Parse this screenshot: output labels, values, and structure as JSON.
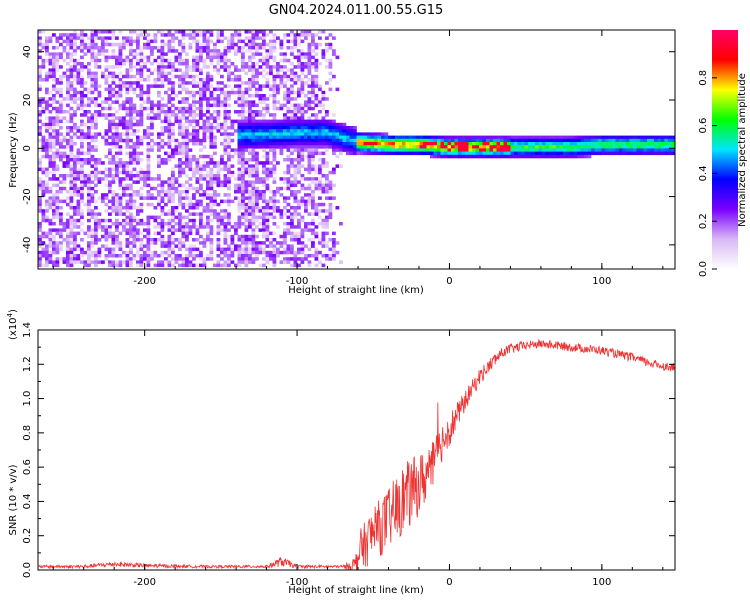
{
  "figure_title": "GN04.2024.011.00.55.G15",
  "chart_data": [
    {
      "type": "heatmap",
      "title": "",
      "xlabel": "Height of straight line (km)",
      "ylabel": "Frequency (Hz)",
      "xlim": [
        -270,
        148
      ],
      "ylim": [
        -50,
        49
      ],
      "xticks": [
        -200,
        -100,
        0,
        100
      ],
      "yticks": [
        -40,
        -20,
        0,
        20,
        40
      ],
      "colorbar": {
        "label": "Normalized spectral amplitude",
        "range": [
          0,
          1
        ],
        "ticks": [
          0.0,
          0.2,
          0.4,
          0.6,
          0.8
        ],
        "colormap": [
          "#ffffff",
          "#d9b8f5",
          "#7a00ff",
          "#0000ff",
          "#00e5ff",
          "#00ff00",
          "#ffff00",
          "#ff0000",
          "#ff0066"
        ]
      },
      "ridge": {
        "description_free": true,
        "x": [
          -130,
          -100,
          -80,
          -60,
          -40,
          -20,
          0,
          20,
          40,
          60,
          80,
          100,
          120,
          148
        ],
        "frequency": [
          5,
          6,
          6,
          2,
          1,
          1,
          0,
          0,
          0,
          0,
          0,
          1,
          1,
          1
        ]
      },
      "noise_region_x": [
        -270,
        -70
      ]
    },
    {
      "type": "line",
      "title": "",
      "xlabel": "Height of straight line (km)",
      "ylabel": "SNR (10 * v/v)",
      "y_multiplier_label": "(x10",
      "y_multiplier_exp": "4",
      "y_multiplier_close": ")",
      "xlim": [
        -270,
        148
      ],
      "ylim": [
        0,
        1.4
      ],
      "xticks": [
        -200,
        -100,
        0,
        100
      ],
      "yticks": [
        0.0,
        0.2,
        0.4,
        0.6,
        0.8,
        1.0,
        1.2,
        1.4
      ],
      "series": [
        {
          "color": "#ee3333",
          "x": [
            -270,
            -240,
            -220,
            -200,
            -160,
            -120,
            -110,
            -100,
            -80,
            -70,
            -62,
            -58,
            -55,
            -50,
            -45,
            -40,
            -35,
            -30,
            -25,
            -20,
            -15,
            -10,
            -5,
            0,
            5,
            10,
            15,
            20,
            25,
            30,
            35,
            40,
            45,
            50,
            60,
            70,
            80,
            90,
            100,
            110,
            120,
            130,
            140,
            148
          ],
          "y": [
            0.02,
            0.02,
            0.035,
            0.025,
            0.02,
            0.02,
            0.05,
            0.02,
            0.02,
            0.02,
            0.03,
            0.13,
            0.15,
            0.22,
            0.25,
            0.3,
            0.35,
            0.42,
            0.45,
            0.5,
            0.55,
            0.62,
            0.75,
            0.82,
            0.9,
            0.98,
            1.06,
            1.13,
            1.18,
            1.23,
            1.27,
            1.29,
            1.3,
            1.31,
            1.32,
            1.31,
            1.3,
            1.29,
            1.28,
            1.26,
            1.24,
            1.21,
            1.19,
            1.18
          ],
          "noise_amplitude": [
            0.008,
            0.01,
            0.015,
            0.012,
            0.008,
            0.008,
            0.03,
            0.01,
            0.008,
            0.008,
            0.05,
            0.12,
            0.14,
            0.16,
            0.17,
            0.18,
            0.2,
            0.2,
            0.2,
            0.18,
            0.16,
            0.14,
            0.12,
            0.1,
            0.08,
            0.06,
            0.05,
            0.05,
            0.04,
            0.04,
            0.03,
            0.03,
            0.03,
            0.025,
            0.025,
            0.025,
            0.025,
            0.025,
            0.025,
            0.025,
            0.025,
            0.025,
            0.025,
            0.025
          ]
        }
      ]
    }
  ]
}
